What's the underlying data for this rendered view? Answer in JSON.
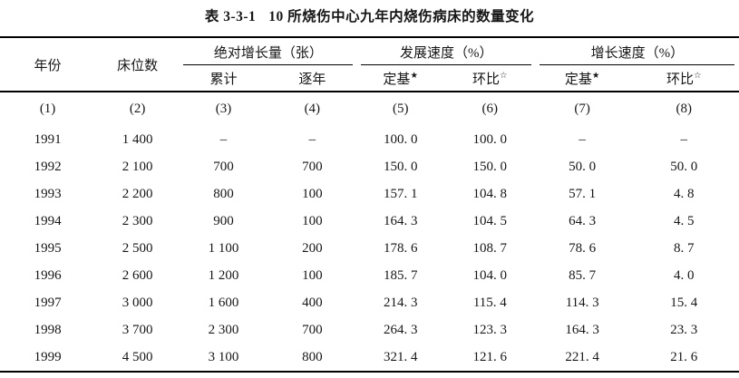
{
  "title": {
    "label": "表 3-3-1",
    "caption": "10 所烧伤中心九年内烧伤病床的数量变化"
  },
  "table": {
    "header": {
      "year": "年份",
      "beds": "床位数",
      "groups": [
        {
          "label": "绝对增长量（张）"
        },
        {
          "label": "发展速度（%）"
        },
        {
          "label": "增长速度（%）"
        }
      ],
      "subs": [
        "累计",
        "逐年",
        "定基",
        "环比",
        "定基",
        "环比"
      ],
      "star_filled": "★",
      "star_open": "☆"
    },
    "column_index_row": [
      "(1)",
      "(2)",
      "(3)",
      "(4)",
      "(5)",
      "(6)",
      "(7)",
      "(8)"
    ],
    "rows": [
      {
        "cells": [
          "1991",
          "1 400",
          "–",
          "–",
          "100. 0",
          "100. 0",
          "–",
          "–"
        ]
      },
      {
        "cells": [
          "1992",
          "2 100",
          "700",
          "700",
          "150. 0",
          "150. 0",
          "50. 0",
          "50. 0"
        ]
      },
      {
        "cells": [
          "1993",
          "2 200",
          "800",
          "100",
          "157. 1",
          "104. 8",
          "57. 1",
          "4. 8"
        ]
      },
      {
        "cells": [
          "1994",
          "2 300",
          "900",
          "100",
          "164. 3",
          "104. 5",
          "64. 3",
          "4. 5"
        ]
      },
      {
        "cells": [
          "1995",
          "2 500",
          "1 100",
          "200",
          "178. 6",
          "108. 7",
          "78. 6",
          "8. 7"
        ]
      },
      {
        "cells": [
          "1996",
          "2 600",
          "1 200",
          "100",
          "185. 7",
          "104. 0",
          "85. 7",
          "4. 0"
        ]
      },
      {
        "cells": [
          "1997",
          "3 000",
          "1 600",
          "400",
          "214. 3",
          "115. 4",
          "114. 3",
          "15. 4"
        ]
      },
      {
        "cells": [
          "1998",
          "3 700",
          "2 300",
          "700",
          "264. 3",
          "123. 3",
          "164. 3",
          "23. 3"
        ]
      },
      {
        "cells": [
          "1999",
          "4 500",
          "3 100",
          "800",
          "321. 4",
          "121. 6",
          "221. 4",
          "21. 6"
        ]
      }
    ]
  },
  "colors": {
    "background": "#ffffff",
    "text": "#161616",
    "rule": "#000000"
  }
}
